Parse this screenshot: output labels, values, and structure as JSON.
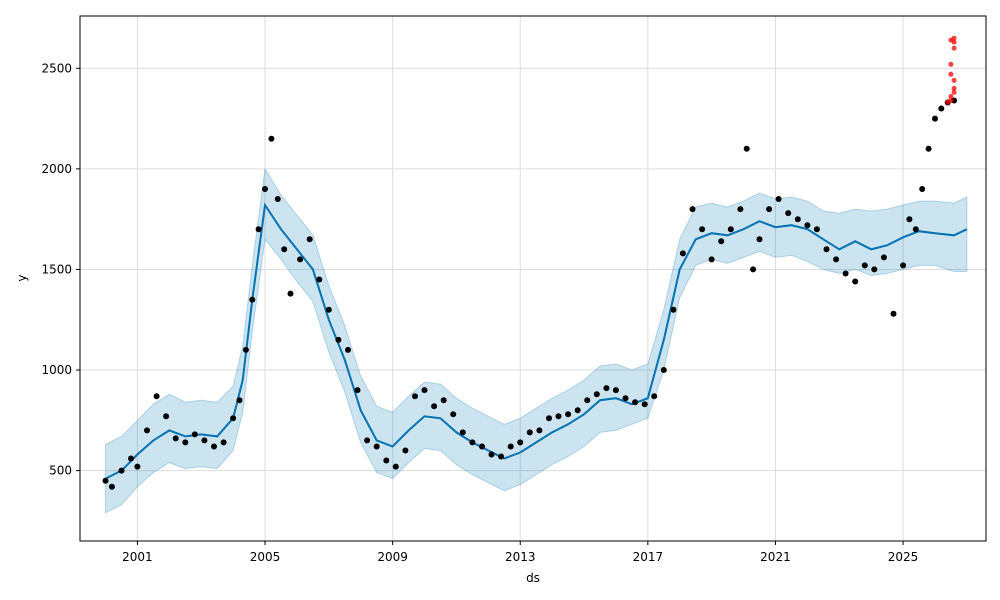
{
  "chart_data": {
    "type": "line",
    "title": "",
    "xlabel": "ds",
    "ylabel": "y",
    "xlim": [
      1999.2,
      2027.6
    ],
    "ylim": [
      150,
      2760
    ],
    "grid": true,
    "x_ticks": [
      {
        "value": 2001,
        "label": "2001"
      },
      {
        "value": 2005,
        "label": "2005"
      },
      {
        "value": 2009,
        "label": "2009"
      },
      {
        "value": 2013,
        "label": "2013"
      },
      {
        "value": 2017,
        "label": "2017"
      },
      {
        "value": 2021,
        "label": "2021"
      },
      {
        "value": 2025,
        "label": "2025"
      }
    ],
    "y_ticks": [
      {
        "value": 500,
        "label": "500"
      },
      {
        "value": 1000,
        "label": "1000"
      },
      {
        "value": 1500,
        "label": "1500"
      },
      {
        "value": 2000,
        "label": "2000"
      },
      {
        "value": 2500,
        "label": "2500"
      }
    ],
    "colors": {
      "forecast_line": "#0072B2",
      "uncertainty_band": "#0072B2",
      "observed_points": "#000000",
      "outlier_points": "#ff0000",
      "grid": "#dddddd"
    },
    "forecast": {
      "x": [
        2000.0,
        2000.5,
        2001.0,
        2001.5,
        2002.0,
        2002.5,
        2003.0,
        2003.5,
        2004.0,
        2004.3,
        2004.6,
        2005.0,
        2005.5,
        2006.0,
        2006.5,
        2007.0,
        2007.5,
        2008.0,
        2008.5,
        2009.0,
        2009.5,
        2010.0,
        2010.5,
        2011.0,
        2011.5,
        2012.0,
        2012.5,
        2013.0,
        2013.5,
        2014.0,
        2014.5,
        2015.0,
        2015.5,
        2016.0,
        2016.5,
        2017.0,
        2017.5,
        2018.0,
        2018.5,
        2019.0,
        2019.5,
        2020.0,
        2020.5,
        2021.0,
        2021.5,
        2022.0,
        2022.5,
        2023.0,
        2023.5,
        2024.0,
        2024.5,
        2025.0,
        2025.5,
        2026.0,
        2026.6,
        2027.0
      ],
      "yhat": [
        460,
        500,
        580,
        650,
        700,
        670,
        680,
        670,
        760,
        950,
        1350,
        1820,
        1700,
        1600,
        1500,
        1250,
        1050,
        800,
        650,
        620,
        700,
        770,
        760,
        690,
        640,
        600,
        560,
        590,
        640,
        690,
        730,
        780,
        850,
        860,
        830,
        860,
        1150,
        1500,
        1650,
        1680,
        1670,
        1700,
        1740,
        1710,
        1720,
        1700,
        1650,
        1600,
        1640,
        1600,
        1620,
        1660,
        1690,
        1680,
        1670,
        1700
      ],
      "lower": [
        290,
        330,
        420,
        490,
        540,
        510,
        520,
        510,
        600,
        790,
        1190,
        1650,
        1550,
        1440,
        1340,
        1090,
        890,
        640,
        490,
        460,
        540,
        610,
        600,
        530,
        480,
        440,
        400,
        430,
        480,
        530,
        570,
        620,
        690,
        700,
        730,
        760,
        1000,
        1360,
        1520,
        1550,
        1530,
        1560,
        1590,
        1560,
        1570,
        1540,
        1500,
        1480,
        1500,
        1470,
        1480,
        1500,
        1520,
        1520,
        1490,
        1490
      ],
      "upper": [
        630,
        670,
        750,
        830,
        880,
        840,
        850,
        840,
        920,
        1120,
        1520,
        2000,
        1870,
        1770,
        1670,
        1420,
        1220,
        970,
        820,
        790,
        870,
        940,
        930,
        860,
        810,
        770,
        730,
        760,
        810,
        860,
        900,
        950,
        1020,
        1030,
        1000,
        1030,
        1300,
        1650,
        1810,
        1830,
        1810,
        1840,
        1880,
        1850,
        1860,
        1840,
        1790,
        1780,
        1800,
        1790,
        1800,
        1820,
        1840,
        1840,
        1830,
        1860
      ]
    },
    "observed": {
      "x": [
        2000.0,
        2000.2,
        2000.5,
        2000.8,
        2001.0,
        2001.3,
        2001.6,
        2001.9,
        2002.2,
        2002.5,
        2002.8,
        2003.1,
        2003.4,
        2003.7,
        2004.0,
        2004.2,
        2004.4,
        2004.6,
        2004.8,
        2005.0,
        2005.2,
        2005.4,
        2005.6,
        2005.8,
        2006.1,
        2006.4,
        2006.7,
        2007.0,
        2007.3,
        2007.6,
        2007.9,
        2008.2,
        2008.5,
        2008.8,
        2009.1,
        2009.4,
        2009.7,
        2010.0,
        2010.3,
        2010.6,
        2010.9,
        2011.2,
        2011.5,
        2011.8,
        2012.1,
        2012.4,
        2012.7,
        2013.0,
        2013.3,
        2013.6,
        2013.9,
        2014.2,
        2014.5,
        2014.8,
        2015.1,
        2015.4,
        2015.7,
        2016.0,
        2016.3,
        2016.6,
        2016.9,
        2017.2,
        2017.5,
        2017.8,
        2018.1,
        2018.4,
        2018.7,
        2019.0,
        2019.3,
        2019.6,
        2019.9,
        2020.1,
        2020.3,
        2020.5,
        2020.8,
        2021.1,
        2021.4,
        2021.7,
        2022.0,
        2022.3,
        2022.6,
        2022.9,
        2023.2,
        2023.5,
        2023.8,
        2024.1,
        2024.4,
        2024.7,
        2025.0,
        2025.2,
        2025.4,
        2025.6,
        2025.8,
        2026.0,
        2026.2,
        2026.4,
        2026.6
      ],
      "y": [
        450,
        420,
        500,
        560,
        520,
        700,
        870,
        770,
        660,
        640,
        680,
        650,
        620,
        640,
        760,
        850,
        1100,
        1350,
        1700,
        1900,
        2150,
        1850,
        1600,
        1380,
        1550,
        1650,
        1450,
        1300,
        1150,
        1100,
        900,
        650,
        620,
        550,
        520,
        600,
        870,
        900,
        820,
        850,
        780,
        690,
        640,
        620,
        580,
        570,
        620,
        640,
        690,
        700,
        760,
        770,
        780,
        800,
        850,
        880,
        910,
        900,
        860,
        840,
        830,
        870,
        1000,
        1300,
        1580,
        1800,
        1700,
        1550,
        1640,
        1700,
        1800,
        2100,
        1500,
        1650,
        1800,
        1850,
        1780,
        1750,
        1720,
        1700,
        1600,
        1550,
        1480,
        1440,
        1520,
        1500,
        1560,
        1280,
        1520,
        1750,
        1700,
        1900,
        2100,
        2250,
        2300,
        2330,
        2340
      ]
    },
    "outliers": {
      "x": [
        2026.4,
        2026.5,
        2026.5,
        2026.6,
        2026.6,
        2026.6,
        2026.5,
        2026.5,
        2026.6,
        2026.6,
        2026.5,
        2026.6
      ],
      "y": [
        2330,
        2340,
        2360,
        2380,
        2400,
        2440,
        2470,
        2520,
        2600,
        2630,
        2640,
        2650
      ]
    }
  }
}
